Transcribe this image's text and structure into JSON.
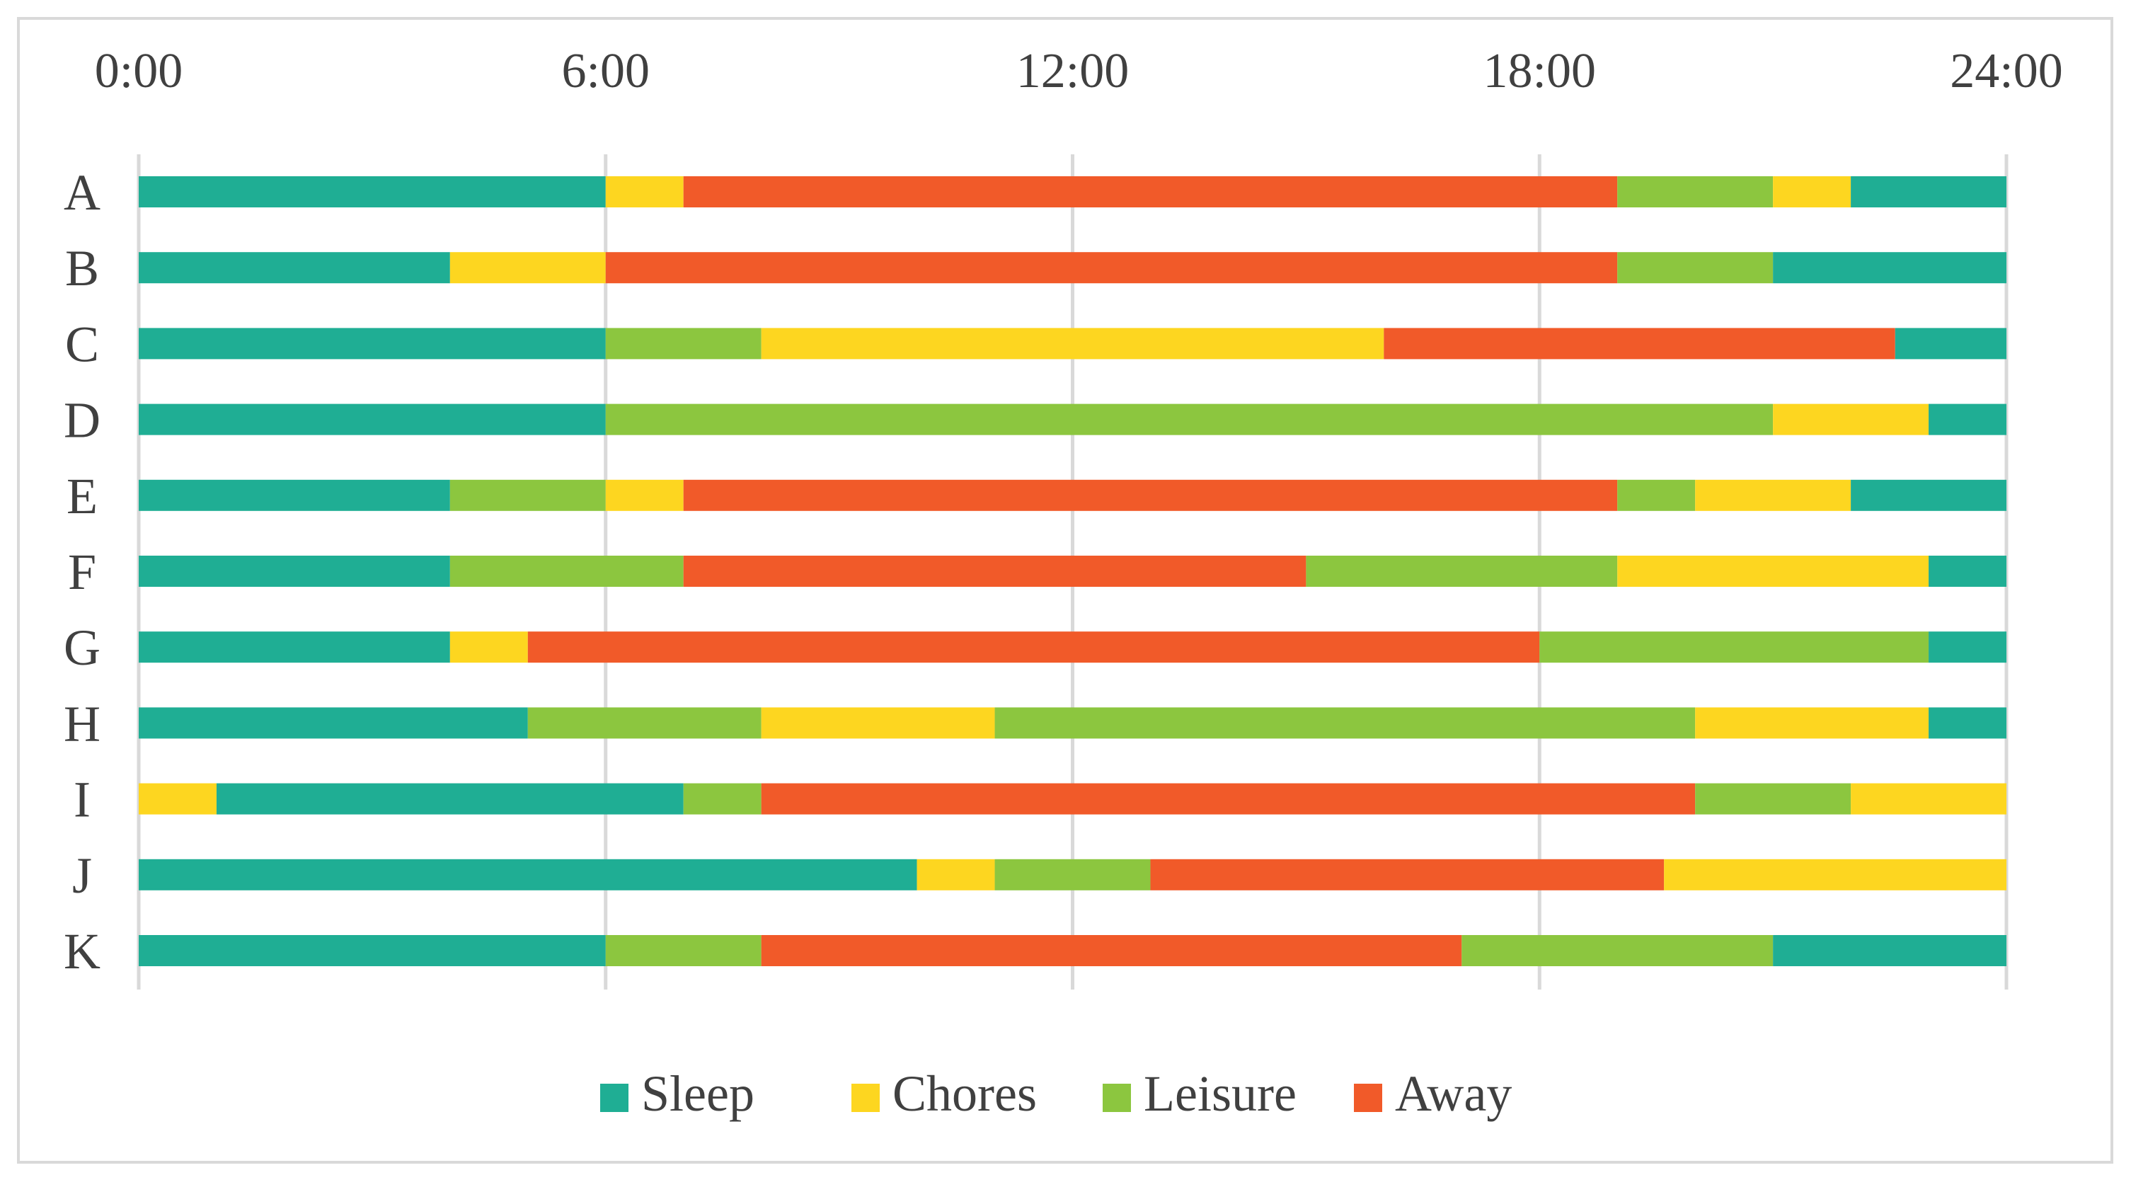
{
  "chart_data": {
    "type": "bar",
    "orientation": "horizontal-stacked",
    "title": "",
    "xlabel": "",
    "ylabel": "",
    "xlim": [
      0,
      24
    ],
    "x_ticks": [
      {
        "value": 0,
        "label": "0:00"
      },
      {
        "value": 6,
        "label": "6:00"
      },
      {
        "value": 12,
        "label": "12:00"
      },
      {
        "value": 18,
        "label": "18:00"
      },
      {
        "value": 24,
        "label": "24:00"
      }
    ],
    "grid": true,
    "legend_position": "bottom",
    "activities": [
      {
        "name": "Sleep",
        "color": "#1fae94"
      },
      {
        "name": "Chores",
        "color": "#fdd620"
      },
      {
        "name": "Leisure",
        "color": "#8cc63f"
      },
      {
        "name": "Away",
        "color": "#f15a29"
      }
    ],
    "rows": [
      {
        "label": "A",
        "segments": [
          {
            "activity": "Sleep",
            "start": 0,
            "end": 6
          },
          {
            "activity": "Chores",
            "start": 6,
            "end": 7
          },
          {
            "activity": "Away",
            "start": 7,
            "end": 19
          },
          {
            "activity": "Leisure",
            "start": 19,
            "end": 21
          },
          {
            "activity": "Chores",
            "start": 21,
            "end": 22
          },
          {
            "activity": "Sleep",
            "start": 22,
            "end": 24
          }
        ]
      },
      {
        "label": "B",
        "segments": [
          {
            "activity": "Sleep",
            "start": 0,
            "end": 4
          },
          {
            "activity": "Chores",
            "start": 4,
            "end": 6
          },
          {
            "activity": "Away",
            "start": 6,
            "end": 19
          },
          {
            "activity": "Leisure",
            "start": 19,
            "end": 21
          },
          {
            "activity": "Sleep",
            "start": 21,
            "end": 24
          }
        ]
      },
      {
        "label": "C",
        "segments": [
          {
            "activity": "Sleep",
            "start": 0,
            "end": 6
          },
          {
            "activity": "Leisure",
            "start": 6,
            "end": 8
          },
          {
            "activity": "Chores",
            "start": 8,
            "end": 16
          },
          {
            "activity": "Away",
            "start": 16,
            "end": 22.57
          },
          {
            "activity": "Sleep",
            "start": 22.57,
            "end": 24
          }
        ]
      },
      {
        "label": "D",
        "segments": [
          {
            "activity": "Sleep",
            "start": 0,
            "end": 6
          },
          {
            "activity": "Leisure",
            "start": 6,
            "end": 21
          },
          {
            "activity": "Chores",
            "start": 21,
            "end": 23
          },
          {
            "activity": "Sleep",
            "start": 23,
            "end": 24
          }
        ]
      },
      {
        "label": "E",
        "segments": [
          {
            "activity": "Sleep",
            "start": 0,
            "end": 4
          },
          {
            "activity": "Leisure",
            "start": 4,
            "end": 6
          },
          {
            "activity": "Chores",
            "start": 6,
            "end": 7
          },
          {
            "activity": "Away",
            "start": 7,
            "end": 19
          },
          {
            "activity": "Leisure",
            "start": 19,
            "end": 20
          },
          {
            "activity": "Chores",
            "start": 20,
            "end": 22
          },
          {
            "activity": "Sleep",
            "start": 22,
            "end": 24
          }
        ]
      },
      {
        "label": "F",
        "segments": [
          {
            "activity": "Sleep",
            "start": 0,
            "end": 4
          },
          {
            "activity": "Leisure",
            "start": 4,
            "end": 7
          },
          {
            "activity": "Away",
            "start": 7,
            "end": 15
          },
          {
            "activity": "Leisure",
            "start": 15,
            "end": 19
          },
          {
            "activity": "Chores",
            "start": 19,
            "end": 23
          },
          {
            "activity": "Sleep",
            "start": 23,
            "end": 24
          }
        ]
      },
      {
        "label": "G",
        "segments": [
          {
            "activity": "Sleep",
            "start": 0,
            "end": 4
          },
          {
            "activity": "Chores",
            "start": 4,
            "end": 5
          },
          {
            "activity": "Away",
            "start": 5,
            "end": 18
          },
          {
            "activity": "Leisure",
            "start": 18,
            "end": 23
          },
          {
            "activity": "Sleep",
            "start": 23,
            "end": 24
          }
        ]
      },
      {
        "label": "H",
        "segments": [
          {
            "activity": "Sleep",
            "start": 0,
            "end": 5
          },
          {
            "activity": "Leisure",
            "start": 5,
            "end": 8
          },
          {
            "activity": "Chores",
            "start": 8,
            "end": 11
          },
          {
            "activity": "Leisure",
            "start": 11,
            "end": 20
          },
          {
            "activity": "Chores",
            "start": 20,
            "end": 23
          },
          {
            "activity": "Sleep",
            "start": 23,
            "end": 24
          }
        ]
      },
      {
        "label": "I",
        "segments": [
          {
            "activity": "Chores",
            "start": 0,
            "end": 1
          },
          {
            "activity": "Sleep",
            "start": 1,
            "end": 7
          },
          {
            "activity": "Leisure",
            "start": 7,
            "end": 8
          },
          {
            "activity": "Away",
            "start": 8,
            "end": 20
          },
          {
            "activity": "Leisure",
            "start": 20,
            "end": 22
          },
          {
            "activity": "Chores",
            "start": 22,
            "end": 24
          }
        ]
      },
      {
        "label": "J",
        "segments": [
          {
            "activity": "Sleep",
            "start": 0,
            "end": 10
          },
          {
            "activity": "Chores",
            "start": 10,
            "end": 11
          },
          {
            "activity": "Leisure",
            "start": 11,
            "end": 13
          },
          {
            "activity": "Away",
            "start": 13,
            "end": 19.6
          },
          {
            "activity": "Chores",
            "start": 19.6,
            "end": 24
          }
        ]
      },
      {
        "label": "K",
        "segments": [
          {
            "activity": "Sleep",
            "start": 0,
            "end": 6
          },
          {
            "activity": "Leisure",
            "start": 6,
            "end": 8
          },
          {
            "activity": "Away",
            "start": 8,
            "end": 17
          },
          {
            "activity": "Leisure",
            "start": 17,
            "end": 21
          },
          {
            "activity": "Sleep",
            "start": 21,
            "end": 24
          }
        ]
      }
    ]
  }
}
